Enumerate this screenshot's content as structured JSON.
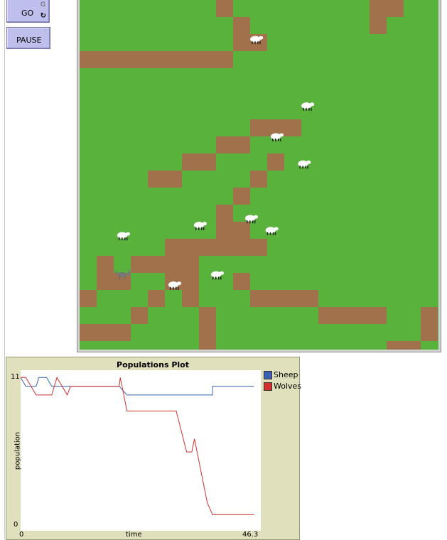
{
  "buttons": {
    "go": {
      "label": "GO",
      "key": "G",
      "forever_icon": "forever-loop-icon"
    },
    "pause": {
      "label": "PAUSE",
      "key": ""
    }
  },
  "world": {
    "grass_color": "#59b23c",
    "dirt_color": "#a0714a",
    "patch_size_note": "",
    "dirt_patches": [
      [
        8,
        0
      ],
      [
        17,
        0
      ],
      [
        18,
        0
      ],
      [
        17,
        1
      ],
      [
        9,
        1
      ],
      [
        9,
        2
      ],
      [
        10,
        2
      ],
      [
        0,
        3
      ],
      [
        1,
        3
      ],
      [
        2,
        3
      ],
      [
        3,
        3
      ],
      [
        4,
        3
      ],
      [
        5,
        3
      ],
      [
        6,
        3
      ],
      [
        7,
        3
      ],
      [
        8,
        3
      ],
      [
        10,
        7
      ],
      [
        11,
        7
      ],
      [
        12,
        7
      ],
      [
        8,
        8
      ],
      [
        9,
        8
      ],
      [
        6,
        9
      ],
      [
        7,
        9
      ],
      [
        11,
        9
      ],
      [
        4,
        10
      ],
      [
        5,
        10
      ],
      [
        10,
        10
      ],
      [
        9,
        11
      ],
      [
        8,
        12
      ],
      [
        8,
        13
      ],
      [
        9,
        13
      ],
      [
        5,
        14
      ],
      [
        6,
        14
      ],
      [
        7,
        14
      ],
      [
        8,
        14
      ],
      [
        9,
        14
      ],
      [
        10,
        14
      ],
      [
        1,
        15
      ],
      [
        3,
        15
      ],
      [
        4,
        15
      ],
      [
        5,
        15
      ],
      [
        6,
        15
      ],
      [
        1,
        16
      ],
      [
        2,
        16
      ],
      [
        5,
        16
      ],
      [
        6,
        16
      ],
      [
        9,
        16
      ],
      [
        0,
        17
      ],
      [
        4,
        17
      ],
      [
        6,
        17
      ],
      [
        10,
        17
      ],
      [
        11,
        17
      ],
      [
        12,
        17
      ],
      [
        13,
        17
      ],
      [
        3,
        18
      ],
      [
        7,
        18
      ],
      [
        14,
        18
      ],
      [
        15,
        18
      ],
      [
        16,
        18
      ],
      [
        17,
        18
      ],
      [
        20,
        18
      ],
      [
        0,
        19
      ],
      [
        1,
        19
      ],
      [
        2,
        19
      ],
      [
        7,
        19
      ],
      [
        20,
        19
      ],
      [
        7,
        20
      ],
      [
        18,
        20
      ],
      [
        19,
        20
      ]
    ],
    "sheep": [
      [
        10.3,
        2.3
      ],
      [
        13.3,
        6.2
      ],
      [
        11.5,
        8.0
      ],
      [
        13.1,
        9.6
      ],
      [
        7.0,
        13.2
      ],
      [
        10.0,
        12.8
      ],
      [
        11.2,
        13.5
      ],
      [
        2.5,
        13.8
      ],
      [
        8.0,
        16.1
      ],
      [
        5.5,
        16.7
      ]
    ],
    "wolves": [
      [
        2.5,
        16.1
      ]
    ]
  },
  "plot": {
    "title": "Populations Plot",
    "xlabel": "time",
    "ylabel": "population",
    "x_min_label": "0",
    "x_max_label": "46.3",
    "y_min_label": "0",
    "y_max_label": "11",
    "legend": [
      {
        "name": "Sheep",
        "color": "#3a62b0"
      },
      {
        "name": "Wolves",
        "color": "#d32f2f"
      }
    ]
  },
  "chart_data": {
    "type": "line",
    "title": "Populations Plot",
    "xlabel": "time",
    "ylabel": "population",
    "xlim": [
      0,
      46.3
    ],
    "ylim": [
      0,
      11
    ],
    "legend_position": "right",
    "series": [
      {
        "name": "Sheep",
        "color": "#3a62b0",
        "points": [
          [
            0,
            10.5
          ],
          [
            1,
            9.9
          ],
          [
            3,
            9.9
          ],
          [
            3.5,
            10.5
          ],
          [
            5,
            10.5
          ],
          [
            6,
            9.9
          ],
          [
            19,
            9.9
          ],
          [
            20.5,
            9.3
          ],
          [
            37,
            9.3
          ],
          [
            37,
            9.9
          ],
          [
            45,
            9.9
          ]
        ]
      },
      {
        "name": "Wolves",
        "color": "#d32f2f",
        "points": [
          [
            0,
            10.5
          ],
          [
            1,
            10.5
          ],
          [
            3,
            9.3
          ],
          [
            6,
            9.3
          ],
          [
            7,
            10.5
          ],
          [
            9,
            9.3
          ],
          [
            9.6,
            9.9
          ],
          [
            19,
            9.9
          ],
          [
            19.2,
            10.5
          ],
          [
            20.5,
            8.2
          ],
          [
            30,
            8.2
          ],
          [
            32,
            5.4
          ],
          [
            33,
            5.4
          ],
          [
            33.5,
            6.3
          ],
          [
            36,
            1.9
          ],
          [
            37,
            1.1
          ],
          [
            45,
            1.1
          ]
        ]
      }
    ]
  }
}
